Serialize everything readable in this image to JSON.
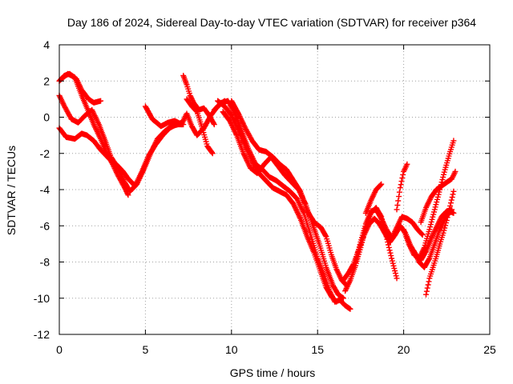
{
  "chart_data": {
    "type": "scatter",
    "title": "Day 186 of 2024, Sidereal Day-to-day VTEC variation (SDTVAR) for receiver p364",
    "xlabel": "GPS time / hours",
    "ylabel": "SDTVAR / TECUs",
    "xlim": [
      0,
      25
    ],
    "ylim": [
      -12,
      4
    ],
    "xticks": [
      0,
      5,
      10,
      15,
      20,
      25
    ],
    "yticks": [
      -12,
      -10,
      -8,
      -6,
      -4,
      -2,
      0,
      2,
      4
    ],
    "grid": true,
    "marker": "plus",
    "color": "#ff0000",
    "series": [
      {
        "x": [
          0.0,
          0.3,
          0.6,
          1.0,
          1.3,
          1.7,
          2.0,
          2.4
        ],
        "y": [
          2.0,
          2.3,
          2.4,
          2.1,
          1.5,
          1.0,
          0.8,
          0.9
        ]
      },
      {
        "x": [
          0.0,
          0.3,
          0.7,
          1.1,
          1.5,
          1.9,
          2.3,
          2.7,
          3.0,
          3.4,
          3.8,
          4.1,
          4.5,
          4.9,
          5.3,
          5.7,
          6.1,
          6.5,
          6.9,
          7.2
        ],
        "y": [
          1.2,
          0.6,
          -0.1,
          -0.3,
          0.1,
          0.4,
          -0.4,
          -1.4,
          -2.2,
          -2.8,
          -3.6,
          -4.1,
          -3.7,
          -2.9,
          -2.0,
          -1.2,
          -0.8,
          -0.5,
          -0.4,
          -0.4
        ]
      },
      {
        "x": [
          0.0,
          0.4,
          0.9,
          1.3,
          1.6,
          2.0,
          2.4,
          2.9,
          3.3,
          3.7,
          4.0,
          4.4,
          4.8,
          5.2,
          5.6,
          6.0,
          6.4,
          6.8,
          7.1
        ],
        "y": [
          -0.6,
          -1.1,
          -1.2,
          -0.9,
          -1.0,
          -1.3,
          -1.8,
          -2.3,
          -2.6,
          -3.0,
          -3.4,
          -3.8,
          -3.0,
          -2.1,
          -1.5,
          -1.0,
          -0.6,
          -0.4,
          -0.3
        ]
      },
      {
        "x": [
          0.1,
          0.5,
          0.9,
          1.3,
          1.7,
          2.0,
          2.4,
          2.7,
          3.1,
          3.4,
          3.8,
          4.0
        ],
        "y": [
          2.1,
          2.4,
          2.2,
          1.2,
          0.3,
          -0.4,
          -1.2,
          -1.9,
          -2.6,
          -3.2,
          -3.9,
          -4.3
        ]
      },
      {
        "x": [
          5.0,
          5.4,
          5.9,
          6.3,
          6.7,
          7.1,
          7.4,
          7.7,
          8.0,
          8.4,
          8.8,
          9.2,
          9.6
        ],
        "y": [
          0.6,
          -0.1,
          -0.5,
          -0.3,
          -0.2,
          -0.4,
          0.2,
          -0.5,
          -1.0,
          -0.6,
          0.1,
          0.6,
          0.9
        ]
      },
      {
        "x": [
          7.2,
          7.4,
          7.6,
          7.8,
          8.1,
          8.4,
          8.7,
          9.0
        ],
        "y": [
          2.3,
          1.8,
          1.2,
          0.8,
          0.4,
          0.5,
          0.1,
          -0.4
        ]
      },
      {
        "x": [
          7.4,
          7.7,
          8.0,
          8.3,
          8.6,
          8.9
        ],
        "y": [
          1.0,
          0.6,
          0.3,
          -0.6,
          -1.6,
          -2.0
        ]
      },
      {
        "x": [
          9.0,
          9.4,
          9.8,
          10.2,
          10.6,
          11.0,
          11.4,
          11.8,
          12.2,
          12.6,
          13.0,
          13.4,
          13.8,
          14.2,
          14.6,
          15.0,
          15.4,
          15.7,
          16.0,
          16.3,
          16.6,
          16.9
        ],
        "y": [
          0.4,
          0.8,
          0.9,
          0.2,
          -0.8,
          -1.8,
          -2.6,
          -2.9,
          -3.3,
          -3.5,
          -3.8,
          -4.1,
          -4.5,
          -5.3,
          -6.5,
          -7.8,
          -8.8,
          -9.6,
          -10.2,
          -10.1,
          -10.4,
          -10.6
        ]
      },
      {
        "x": [
          9.2,
          9.6,
          10.0,
          10.4,
          10.8,
          11.2,
          11.6,
          12.0,
          12.4,
          12.8,
          13.2,
          13.6,
          14.0,
          14.4,
          14.8,
          15.2,
          15.5,
          15.8,
          16.1
        ],
        "y": [
          0.9,
          0.6,
          0.1,
          -0.7,
          -1.6,
          -2.4,
          -3.1,
          -3.5,
          -3.9,
          -4.1,
          -4.3,
          -4.8,
          -5.6,
          -6.6,
          -7.5,
          -8.6,
          -9.4,
          -9.9,
          -10.2
        ]
      },
      {
        "x": [
          9.5,
          9.9,
          10.3,
          10.7,
          11.1,
          11.5,
          11.9,
          12.3,
          12.7,
          13.1,
          13.5,
          13.9,
          14.3,
          14.7,
          15.1,
          15.5,
          15.9,
          16.2,
          16.5
        ],
        "y": [
          0.3,
          -0.2,
          -1.0,
          -2.0,
          -2.8,
          -3.1,
          -2.6,
          -2.2,
          -2.7,
          -3.2,
          -3.6,
          -4.0,
          -4.8,
          -5.9,
          -7.0,
          -8.3,
          -9.3,
          -9.8,
          -10.0
        ]
      },
      {
        "x": [
          10.0,
          10.4,
          10.8,
          11.2,
          11.6,
          12.0,
          12.4,
          12.8,
          13.2,
          13.6,
          14.0,
          14.4,
          14.8,
          15.2,
          15.5,
          15.8,
          16.1,
          16.4,
          16.7
        ],
        "y": [
          0.9,
          0.2,
          -0.6,
          -1.3,
          -1.8,
          -1.9,
          -2.2,
          -2.6,
          -2.9,
          -3.5,
          -4.1,
          -5.2,
          -5.8,
          -6.1,
          -6.6,
          -7.6,
          -8.4,
          -9.0,
          -9.3
        ]
      },
      {
        "x": [
          16.5,
          16.8,
          17.1,
          17.4,
          17.7,
          18.0,
          18.3,
          18.6,
          18.9,
          19.2,
          19.5,
          19.8,
          20.1,
          20.4,
          20.7,
          21.0,
          21.3,
          21.6,
          21.9,
          22.2,
          22.5,
          22.8
        ],
        "y": [
          -9.0,
          -8.6,
          -8.1,
          -7.3,
          -6.5,
          -5.9,
          -5.6,
          -5.9,
          -6.4,
          -6.9,
          -6.5,
          -6.0,
          -6.4,
          -7.1,
          -7.6,
          -7.9,
          -7.4,
          -6.7,
          -6.1,
          -5.5,
          -5.2,
          -5.1
        ]
      },
      {
        "x": [
          16.6,
          16.9,
          17.2,
          17.5,
          17.8,
          18.1,
          18.4,
          18.7,
          19.0,
          19.3,
          19.6
        ],
        "y": [
          -9.6,
          -9.0,
          -8.2,
          -7.2,
          -6.1,
          -5.3,
          -5.0,
          -5.5,
          -6.6,
          -7.8,
          -8.9
        ]
      },
      {
        "x": [
          17.2,
          17.5,
          17.8,
          18.1,
          18.4,
          18.7,
          19.0,
          19.3,
          19.6,
          19.9,
          20.2,
          20.5,
          20.8,
          21.1
        ],
        "y": [
          -8.0,
          -6.9,
          -5.9,
          -5.2,
          -5.1,
          -5.6,
          -6.2,
          -6.7,
          -6.1,
          -5.5,
          -5.6,
          -5.8,
          -6.2,
          -6.5
        ]
      },
      {
        "x": [
          17.8,
          18.1,
          18.4,
          18.7
        ],
        "y": [
          -5.3,
          -4.6,
          -4.0,
          -3.7
        ]
      },
      {
        "x": [
          19.6,
          19.8,
          20.0,
          20.2
        ],
        "y": [
          -5.1,
          -3.9,
          -3.0,
          -2.6
        ]
      },
      {
        "x": [
          20.0,
          20.3,
          20.6,
          20.9,
          21.2,
          21.5,
          21.8,
          22.1,
          22.4,
          22.7,
          22.9
        ],
        "y": [
          -6.2,
          -7.0,
          -7.6,
          -7.8,
          -7.2,
          -6.2,
          -5.1,
          -4.0,
          -2.9,
          -1.9,
          -1.3
        ]
      },
      {
        "x": [
          20.6,
          20.9,
          21.2,
          21.5,
          21.8,
          22.1,
          22.4,
          22.7,
          22.9
        ],
        "y": [
          -7.4,
          -8.0,
          -8.3,
          -7.8,
          -7.0,
          -6.2,
          -5.6,
          -5.2,
          -5.3
        ]
      },
      {
        "x": [
          21.0,
          21.3,
          21.6,
          21.9,
          22.2,
          22.5,
          22.8,
          23.0
        ],
        "y": [
          -5.8,
          -5.0,
          -4.4,
          -4.0,
          -3.8,
          -3.6,
          -3.4,
          -3.0
        ]
      },
      {
        "x": [
          21.3,
          21.5,
          21.7,
          21.9,
          22.1,
          22.3,
          22.5,
          22.7,
          22.9
        ],
        "y": [
          -9.8,
          -8.9,
          -8.3,
          -7.7,
          -7.0,
          -6.4,
          -5.7,
          -4.9,
          -4.1
        ]
      }
    ]
  }
}
